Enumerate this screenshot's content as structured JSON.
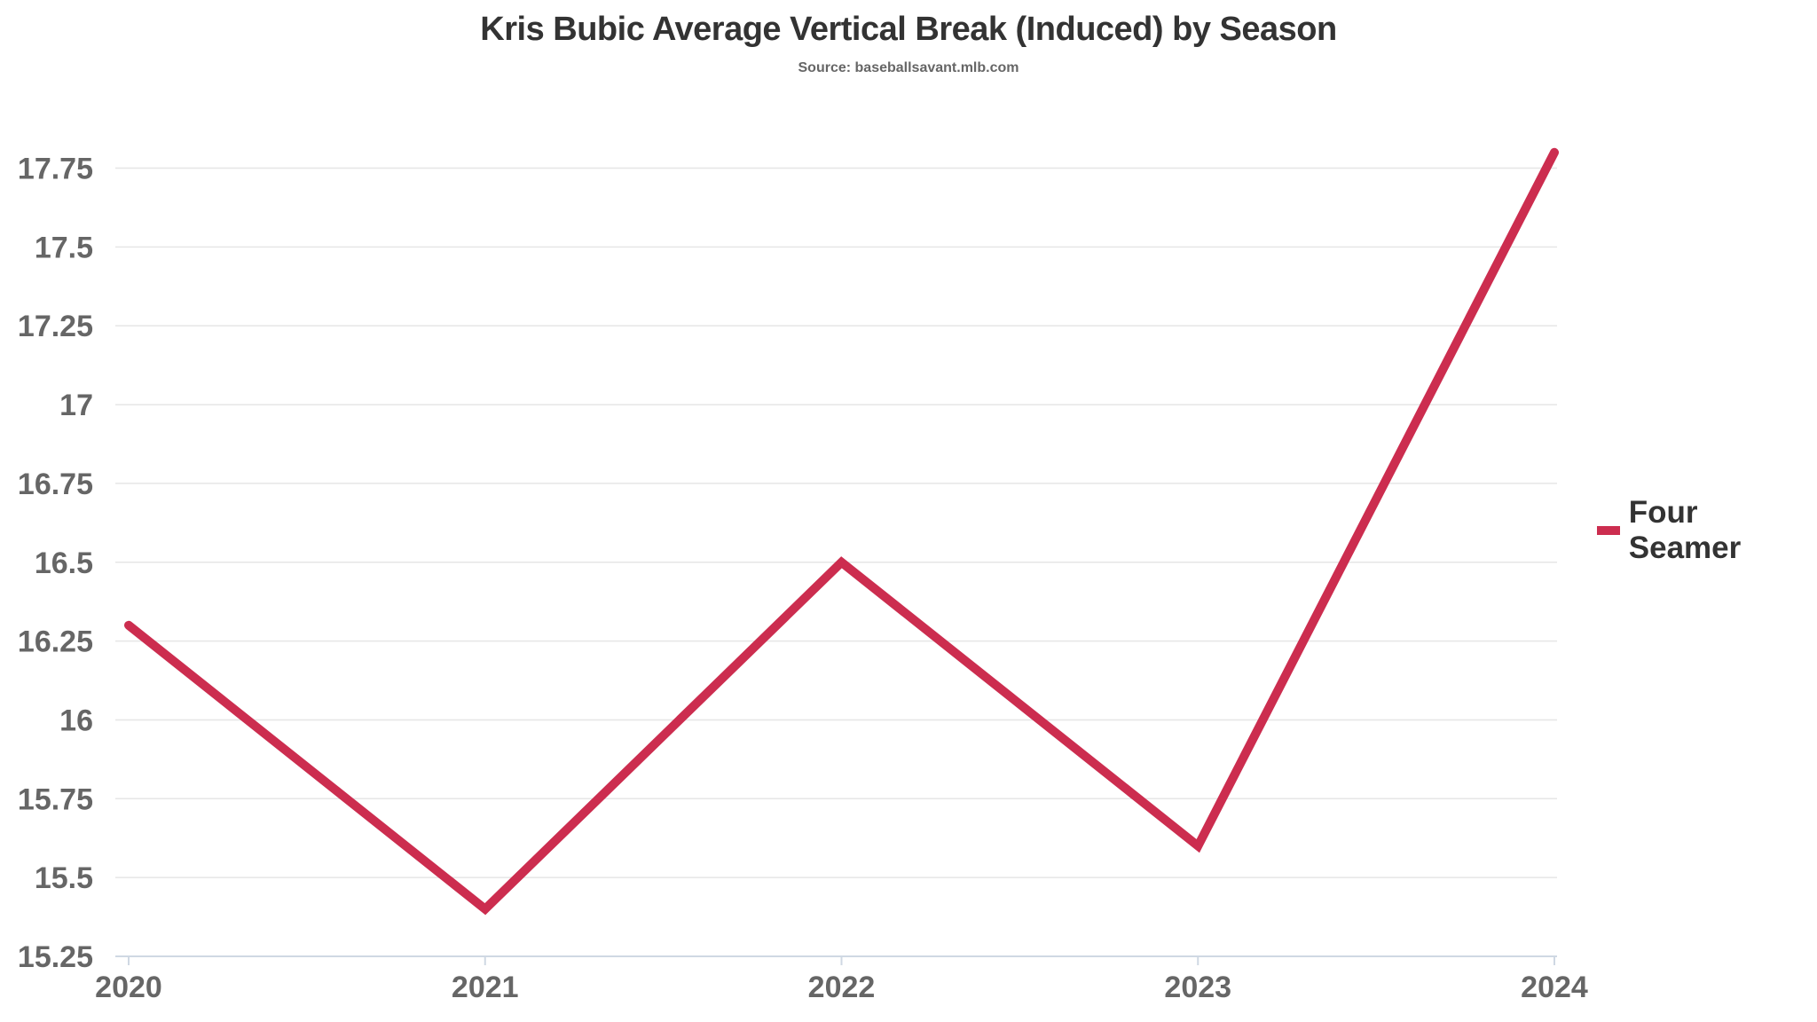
{
  "chart_data": {
    "type": "line",
    "title": "Kris Bubic Average Vertical Break (Induced) by Season",
    "subtitle": "Source: baseballsavant.mlb.com",
    "xlabel": "",
    "ylabel": "",
    "categories": [
      "2020",
      "2021",
      "2022",
      "2023",
      "2024"
    ],
    "series": [
      {
        "name": "Four Seamer",
        "color": "#cc2d4f",
        "values": [
          16.3,
          15.4,
          16.5,
          15.6,
          17.8
        ]
      }
    ],
    "ylim": [
      15.25,
      17.85
    ],
    "yticks": [
      15.25,
      15.5,
      15.75,
      16,
      16.25,
      16.5,
      16.75,
      17,
      17.25,
      17.5,
      17.75
    ],
    "ytick_labels": [
      "15.25",
      "15.5",
      "15.75",
      "16",
      "16.25",
      "16.5",
      "16.75",
      "17",
      "17.25",
      "17.5",
      "17.75"
    ],
    "grid": true,
    "legend_position": "right"
  }
}
